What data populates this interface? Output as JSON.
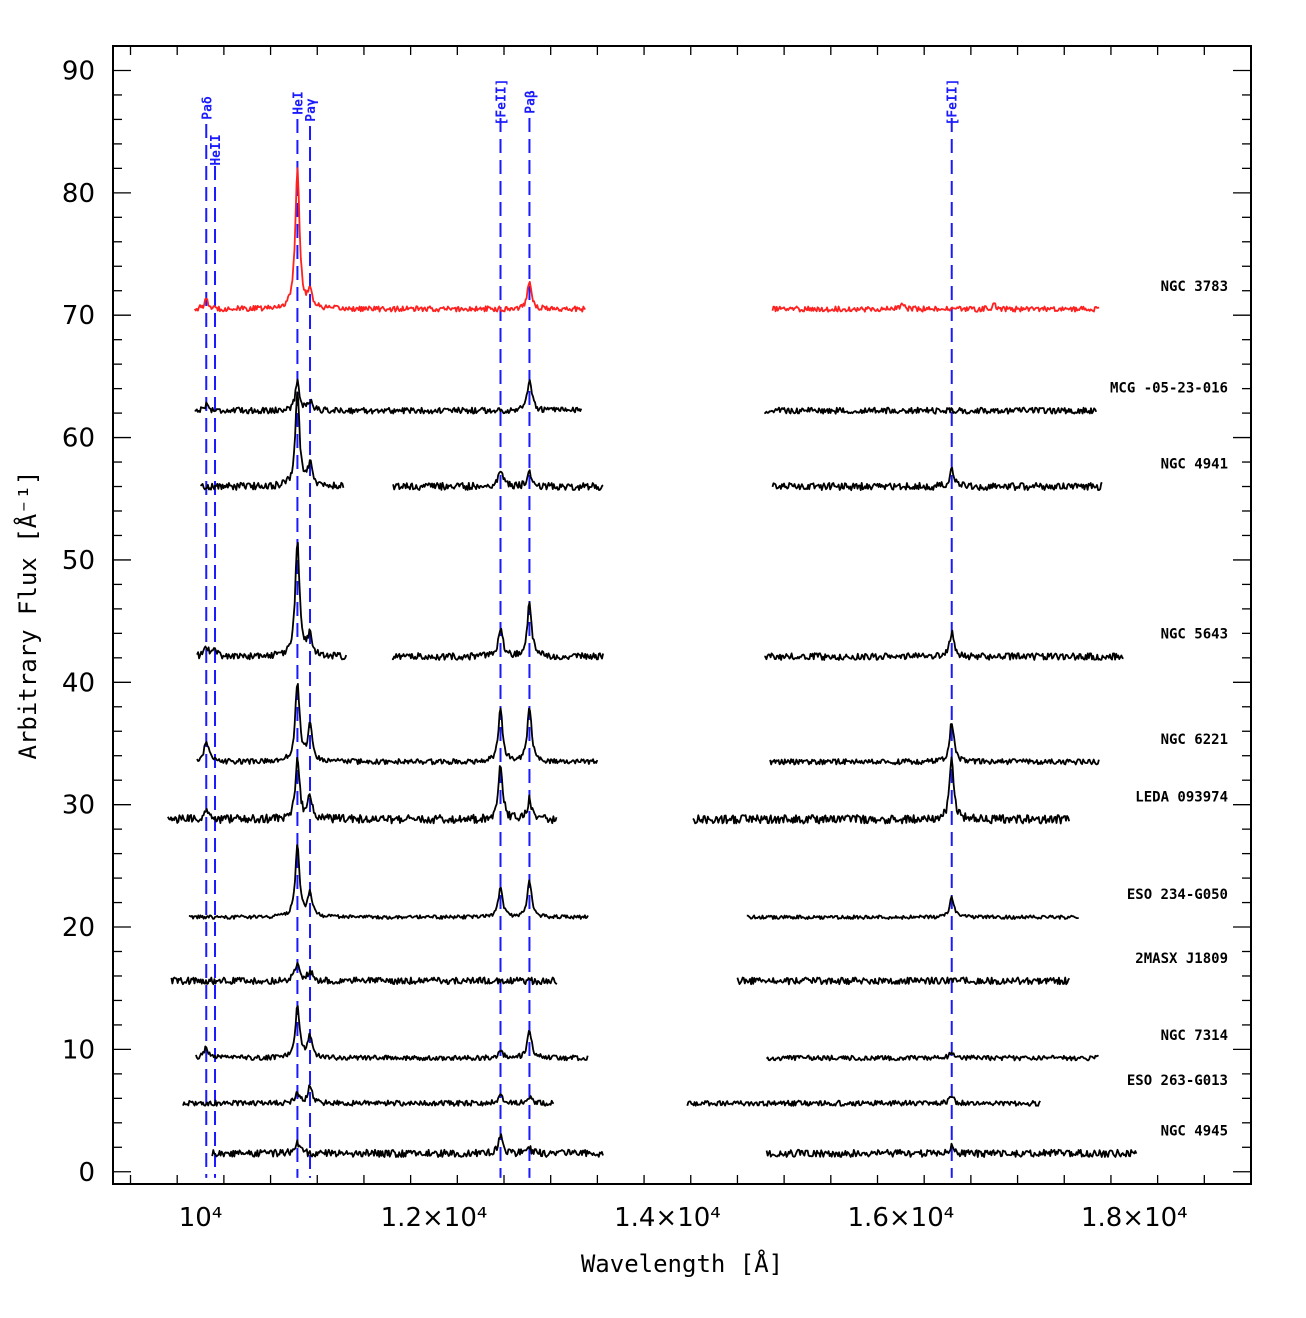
{
  "chart_data": {
    "type": "line",
    "title": "",
    "xlabel": "Wavelength [Å]",
    "ylabel": "Arbitrary Flux [Å⁻¹]",
    "xlim": [
      9250,
      19000
    ],
    "ylim": [
      -1,
      92
    ],
    "x_ticks": [
      {
        "value": 10000,
        "label": "10⁴"
      },
      {
        "value": 12000,
        "label": "1.2×10⁴"
      },
      {
        "value": 14000,
        "label": "1.4×10⁴"
      },
      {
        "value": 16000,
        "label": "1.6×10⁴"
      },
      {
        "value": 18000,
        "label": "1.8×10⁴"
      }
    ],
    "y_ticks": [
      0,
      10,
      20,
      30,
      40,
      50,
      60,
      70,
      80,
      90
    ],
    "emission_lines": [
      {
        "name": "Paδ",
        "wavelength": 10049,
        "color": "#1a1aff"
      },
      {
        "name": "HeII",
        "wavelength": 10124,
        "color": "#1a1aff"
      },
      {
        "name": "HeI",
        "wavelength": 10830,
        "color": "#1a1aff"
      },
      {
        "name": "Paγ",
        "wavelength": 10938,
        "color": "#1a1aff"
      },
      {
        "name": "[FeII]",
        "wavelength": 12570,
        "color": "#1a1aff"
      },
      {
        "name": "Paβ",
        "wavelength": 12818,
        "color": "#1a1aff"
      },
      {
        "name": "[FeII]",
        "wavelength": 16436,
        "color": "#1a1aff"
      }
    ],
    "series": [
      {
        "name": "NGC 3783",
        "color": "#ff2020",
        "baseline": 70.5,
        "segments": [
          [
            9950,
            13300
          ],
          [
            14900,
            17700
          ]
        ],
        "peaks": [
          [
            10049,
            0.7
          ],
          [
            10830,
            11.5
          ],
          [
            10938,
            1.4
          ],
          [
            12818,
            2.3
          ],
          [
            16010,
            0.4
          ],
          [
            16800,
            0.3
          ]
        ],
        "noise": 0.22
      },
      {
        "name": "MCG -05-23-016",
        "color": "#000000",
        "baseline": 62.2,
        "segments": [
          [
            9950,
            13270
          ],
          [
            14830,
            17680
          ]
        ],
        "peaks": [
          [
            10049,
            0.5
          ],
          [
            10830,
            2.3
          ],
          [
            10938,
            0.8
          ],
          [
            12818,
            2.6
          ]
        ],
        "noise": 0.25
      },
      {
        "name": "NGC 4941",
        "color": "#000000",
        "baseline": 56.0,
        "segments": [
          [
            10000,
            11230
          ],
          [
            11650,
            13450
          ],
          [
            14900,
            17730
          ]
        ],
        "peaks": [
          [
            10830,
            7.5
          ],
          [
            10938,
            1.8
          ],
          [
            12570,
            1.5
          ],
          [
            12818,
            1.2
          ],
          [
            16436,
            1.3
          ]
        ],
        "noise": 0.3
      },
      {
        "name": "NGC 5643",
        "color": "#000000",
        "baseline": 42.1,
        "segments": [
          [
            9970,
            11250
          ],
          [
            11640,
            13450
          ],
          [
            14830,
            17910
          ]
        ],
        "peaks": [
          [
            10049,
            0.8
          ],
          [
            10124,
            0.6
          ],
          [
            10830,
            9.5
          ],
          [
            10938,
            1.8
          ],
          [
            12570,
            2.4
          ],
          [
            12818,
            4.3
          ],
          [
            16436,
            2.0
          ]
        ],
        "noise": 0.28
      },
      {
        "name": "NGC 6221",
        "color": "#000000",
        "baseline": 33.5,
        "segments": [
          [
            9970,
            13400
          ],
          [
            14880,
            17700
          ]
        ],
        "peaks": [
          [
            10049,
            1.8
          ],
          [
            10830,
            6.5
          ],
          [
            10938,
            3.0
          ],
          [
            12570,
            4.3
          ],
          [
            12818,
            4.5
          ],
          [
            16436,
            3.3
          ]
        ],
        "noise": 0.22
      },
      {
        "name": "LEDA 093974",
        "color": "#000000",
        "baseline": 28.8,
        "segments": [
          [
            9720,
            13050
          ],
          [
            14220,
            17450
          ]
        ],
        "peaks": [
          [
            10049,
            0.8
          ],
          [
            10830,
            4.8
          ],
          [
            10938,
            1.8
          ],
          [
            12570,
            4.3
          ],
          [
            12818,
            1.6
          ],
          [
            16436,
            4.8
          ]
        ],
        "noise": 0.35
      },
      {
        "name": "ESO 234-G050",
        "color": "#000000",
        "baseline": 20.8,
        "segments": [
          [
            9900,
            13320
          ],
          [
            14680,
            17530
          ]
        ],
        "peaks": [
          [
            10830,
            5.8
          ],
          [
            10938,
            2.0
          ],
          [
            12570,
            2.4
          ],
          [
            12818,
            3.0
          ],
          [
            16436,
            1.6
          ]
        ],
        "noise": 0.15
      },
      {
        "name": "2MASX J1809",
        "color": "#000000",
        "baseline": 15.6,
        "segments": [
          [
            9750,
            13060
          ],
          [
            14600,
            17450
          ]
        ],
        "peaks": [
          [
            10830,
            1.6
          ],
          [
            10938,
            0.8
          ]
        ],
        "noise": 0.28
      },
      {
        "name": "NGC 7314",
        "color": "#000000",
        "baseline": 9.3,
        "segments": [
          [
            9960,
            13320
          ],
          [
            14850,
            17700
          ]
        ],
        "peaks": [
          [
            10049,
            0.9
          ],
          [
            10830,
            4.2
          ],
          [
            10938,
            1.8
          ],
          [
            12570,
            0.6
          ],
          [
            12818,
            2.3
          ],
          [
            16436,
            0.5
          ]
        ],
        "noise": 0.2
      },
      {
        "name": "ESO 263-G013",
        "color": "#000000",
        "baseline": 5.6,
        "segments": [
          [
            9850,
            13030
          ],
          [
            14170,
            17200
          ]
        ],
        "peaks": [
          [
            10830,
            0.8
          ],
          [
            10938,
            1.4
          ],
          [
            12570,
            0.7
          ],
          [
            12818,
            0.6
          ],
          [
            16436,
            0.5
          ]
        ],
        "noise": 0.22
      },
      {
        "name": "NGC 4945",
        "color": "#000000",
        "baseline": 1.5,
        "segments": [
          [
            10100,
            13450
          ],
          [
            14850,
            18020
          ]
        ],
        "peaks": [
          [
            10830,
            0.9
          ],
          [
            12570,
            1.4
          ],
          [
            12818,
            0.4
          ],
          [
            16436,
            0.6
          ]
        ],
        "noise": 0.3
      }
    ]
  }
}
